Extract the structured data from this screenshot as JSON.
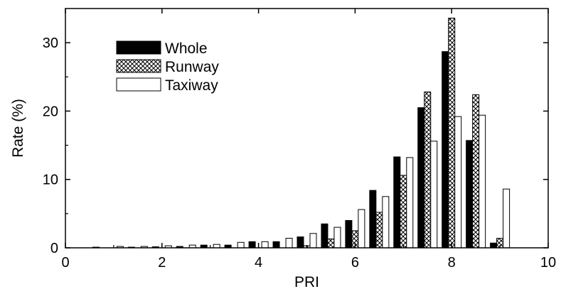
{
  "chart_data": {
    "type": "bar",
    "xlabel": "PRI",
    "ylabel": "Rate (%)",
    "xlim": [
      0,
      10
    ],
    "ylim": [
      0,
      35
    ],
    "xticks": [
      0,
      2,
      4,
      6,
      8,
      10
    ],
    "yticks": [
      0,
      10,
      20,
      30
    ],
    "grid": false,
    "legend_position": "top-left",
    "x": [
      0.5,
      1.0,
      1.5,
      2.0,
      2.5,
      3.0,
      3.5,
      4.0,
      4.5,
      5.0,
      5.5,
      6.0,
      6.5,
      7.0,
      7.5,
      8.0,
      8.5,
      9.0
    ],
    "series": [
      {
        "name": "Whole",
        "pattern": "solid",
        "color": "#000000",
        "values": [
          0.0,
          0.0,
          0.1,
          0.15,
          0.2,
          0.4,
          0.4,
          0.9,
          0.9,
          1.6,
          3.5,
          4.0,
          8.4,
          13.3,
          20.5,
          28.7,
          15.7,
          0.7
        ]
      },
      {
        "name": "Runway",
        "pattern": "crosshatch",
        "color": "#000000",
        "values": [
          0.0,
          0.0,
          0.0,
          0.0,
          0.0,
          0.0,
          0.0,
          0.0,
          0.0,
          0.3,
          1.3,
          2.5,
          5.2,
          10.6,
          22.8,
          33.6,
          22.4,
          1.4
        ]
      },
      {
        "name": "Taxiway",
        "pattern": "open",
        "color": "#ffffff",
        "values": [
          0.1,
          0.2,
          0.2,
          0.3,
          0.4,
          0.5,
          0.8,
          0.9,
          1.4,
          2.1,
          3.0,
          5.6,
          7.5,
          13.2,
          15.6,
          19.2,
          19.4,
          8.6
        ]
      }
    ]
  }
}
